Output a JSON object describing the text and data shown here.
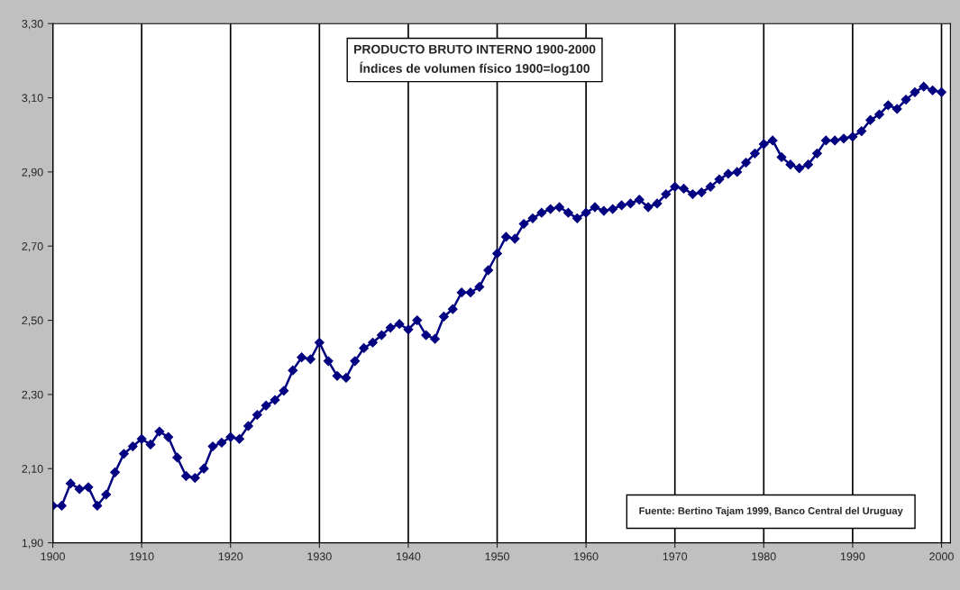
{
  "chart_data": {
    "type": "line",
    "title": "PRODUCTO BRUTO INTERNO 1900-2000",
    "subtitle": "Índices de volumen físico 1900=log100",
    "annotations": [
      "Fuente: Bertino Tajam 1999, Banco Central del Uruguay"
    ],
    "x": [
      1900,
      1901,
      1902,
      1903,
      1904,
      1905,
      1906,
      1907,
      1908,
      1909,
      1910,
      1911,
      1912,
      1913,
      1914,
      1915,
      1916,
      1917,
      1918,
      1919,
      1920,
      1921,
      1922,
      1923,
      1924,
      1925,
      1926,
      1927,
      1928,
      1929,
      1930,
      1931,
      1932,
      1933,
      1934,
      1935,
      1936,
      1937,
      1938,
      1939,
      1940,
      1941,
      1942,
      1943,
      1944,
      1945,
      1946,
      1947,
      1948,
      1949,
      1950,
      1951,
      1952,
      1953,
      1954,
      1955,
      1956,
      1957,
      1958,
      1959,
      1960,
      1961,
      1962,
      1963,
      1964,
      1965,
      1966,
      1967,
      1968,
      1969,
      1970,
      1971,
      1972,
      1973,
      1974,
      1975,
      1976,
      1977,
      1978,
      1979,
      1980,
      1981,
      1982,
      1983,
      1984,
      1985,
      1986,
      1987,
      1988,
      1989,
      1990,
      1991,
      1992,
      1993,
      1994,
      1995,
      1996,
      1997,
      1998,
      1999,
      2000
    ],
    "series": [
      {
        "color": "#000080",
        "values": [
          2.0,
          2.0,
          2.06,
          2.045,
          2.05,
          2.0,
          2.03,
          2.09,
          2.14,
          2.16,
          2.18,
          2.165,
          2.2,
          2.185,
          2.13,
          2.08,
          2.075,
          2.1,
          2.16,
          2.17,
          2.185,
          2.18,
          2.215,
          2.245,
          2.27,
          2.285,
          2.31,
          2.365,
          2.4,
          2.395,
          2.44,
          2.39,
          2.35,
          2.345,
          2.39,
          2.425,
          2.44,
          2.46,
          2.48,
          2.49,
          2.475,
          2.5,
          2.46,
          2.45,
          2.51,
          2.53,
          2.575,
          2.575,
          2.59,
          2.635,
          2.68,
          2.725,
          2.72,
          2.76,
          2.775,
          2.79,
          2.8,
          2.805,
          2.79,
          2.775,
          2.79,
          2.805,
          2.795,
          2.8,
          2.81,
          2.815,
          2.825,
          2.805,
          2.815,
          2.84,
          2.86,
          2.855,
          2.84,
          2.845,
          2.86,
          2.88,
          2.895,
          2.9,
          2.925,
          2.95,
          2.975,
          2.985,
          2.94,
          2.92,
          2.91,
          2.92,
          2.95,
          2.985,
          2.985,
          2.99,
          2.995,
          3.01,
          3.04,
          3.055,
          3.08,
          3.07,
          3.095,
          3.115,
          3.13,
          3.12,
          3.115
        ]
      }
    ],
    "xlim": [
      1900,
      2001
    ],
    "xticks": [
      1900,
      1910,
      1920,
      1930,
      1940,
      1950,
      1960,
      1970,
      1980,
      1990,
      2000
    ],
    "ylim": [
      1.9,
      3.3
    ],
    "yticks": [
      {
        "value": 1.9,
        "label": "1,90"
      },
      {
        "value": 2.1,
        "label": "2,10"
      },
      {
        "value": 2.3,
        "label": "2,30"
      },
      {
        "value": 2.5,
        "label": "2,50"
      },
      {
        "value": 2.7,
        "label": "2,70"
      },
      {
        "value": 2.9,
        "label": "2,90"
      },
      {
        "value": 3.1,
        "label": "3,10"
      },
      {
        "value": 3.3,
        "label": "3,30"
      }
    ],
    "grid": "x",
    "legend": false,
    "marker": "diamond",
    "line_style": "solid"
  }
}
